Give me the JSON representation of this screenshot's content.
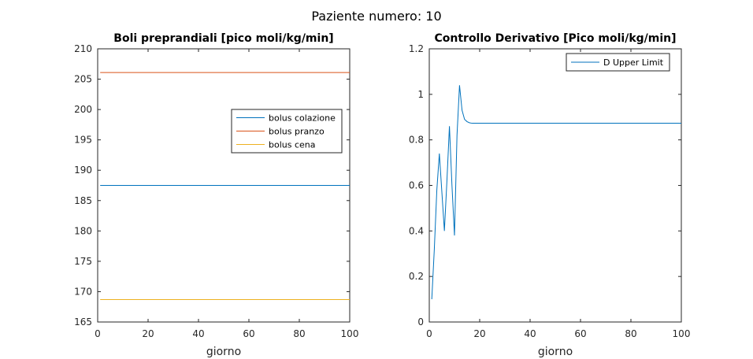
{
  "figure_title": "Paziente numero: 10",
  "chart_data": [
    {
      "type": "line",
      "title": "Boli preprandiali [pico moli/kg/min]",
      "xlabel": "giorno",
      "ylabel": "",
      "xlim": [
        0,
        100
      ],
      "ylim": [
        165,
        210
      ],
      "xticks": [
        0,
        20,
        40,
        60,
        80,
        100
      ],
      "yticks": [
        165,
        170,
        175,
        180,
        185,
        190,
        195,
        200,
        205,
        210
      ],
      "grid": false,
      "legend_position": "right",
      "series": [
        {
          "name": "bolus colazione",
          "color": "#0072BD",
          "x": [
            1,
            100
          ],
          "y": [
            187.5,
            187.5
          ]
        },
        {
          "name": "bolus pranzo",
          "color": "#D95319",
          "x": [
            1,
            100
          ],
          "y": [
            206.1,
            206.1
          ]
        },
        {
          "name": "bolus cena",
          "color": "#EDB120",
          "x": [
            1,
            100
          ],
          "y": [
            168.7,
            168.7
          ]
        }
      ]
    },
    {
      "type": "line",
      "title": "Controllo Derivativo [Pico moli/kg/min]",
      "xlabel": "giorno",
      "ylabel": "",
      "xlim": [
        0,
        100
      ],
      "ylim": [
        0,
        1.2
      ],
      "xticks": [
        0,
        20,
        40,
        60,
        80,
        100
      ],
      "yticks": [
        0,
        0.2,
        0.4,
        0.6,
        0.8,
        1,
        1.2
      ],
      "grid": false,
      "legend_position": "top-right",
      "series": [
        {
          "name": "D Upper Limit",
          "color": "#0072BD",
          "x": [
            1,
            2,
            3,
            4,
            5,
            6,
            7,
            8,
            9,
            10,
            11,
            12,
            13,
            14,
            15,
            16,
            17,
            18,
            20,
            30,
            50,
            100
          ],
          "y": [
            0.1,
            0.32,
            0.58,
            0.74,
            0.57,
            0.4,
            0.62,
            0.86,
            0.6,
            0.38,
            0.82,
            1.04,
            0.93,
            0.89,
            0.88,
            0.875,
            0.873,
            0.873,
            0.873,
            0.873,
            0.873,
            0.873
          ]
        }
      ]
    }
  ]
}
